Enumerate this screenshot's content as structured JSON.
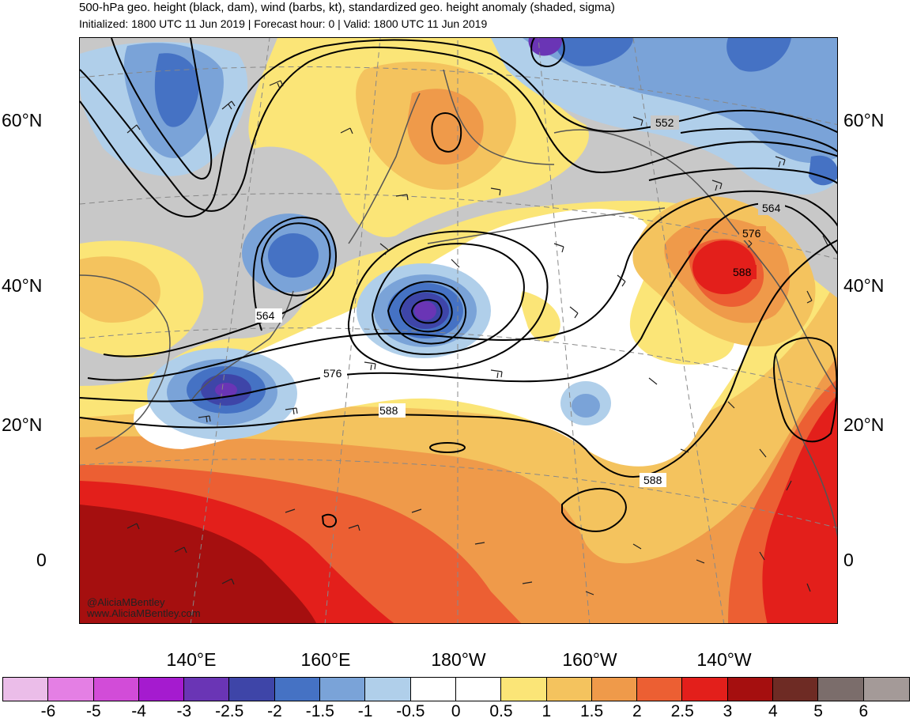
{
  "header": {
    "title": "500-hPa geo. height (black, dam), wind (barbs, kt), standardized geo. height anomaly (shaded, sigma)",
    "subtitle": "Initialized: 1800 UTC 11 Jun 2019 | Forecast hour: 0 | Valid: 1800 UTC 11 Jun 2019"
  },
  "map": {
    "lat_labels": [
      "60°N",
      "40°N",
      "20°N",
      "0"
    ],
    "lon_labels": [
      "140°E",
      "160°E",
      "180°W",
      "160°W",
      "140°W"
    ],
    "contour_labels": [
      "552",
      "564",
      "564",
      "576",
      "576",
      "588",
      "588",
      "588"
    ],
    "credit_handle": "@AliciaMBentley",
    "credit_url": "www.AliciaMBentley.com"
  },
  "colorbar": {
    "labels": [
      "-6",
      "-5",
      "-4",
      "-3",
      "-2.5",
      "-2",
      "-1.5",
      "-1",
      "-0.5",
      "0",
      "0.5",
      "1",
      "1.5",
      "2",
      "2.5",
      "3",
      "4",
      "5",
      "6"
    ],
    "colors": [
      "#ebbde9",
      "#e47fe4",
      "#d24cd8",
      "#a51bcf",
      "#6a35b5",
      "#3e45a8",
      "#4572c4",
      "#7aa3d8",
      "#b0cfea",
      "#ffffff",
      "#ffffff",
      "#fbe577",
      "#f4c35e",
      "#ef9a4a",
      "#ec5f33",
      "#e31f1b",
      "#a50f0f",
      "#6e2b24",
      "#7b6d6b",
      "#a49a98"
    ]
  },
  "colors": {
    "land_gray": "#c8c8c8",
    "contour": "#000000",
    "coast": "#555555"
  }
}
